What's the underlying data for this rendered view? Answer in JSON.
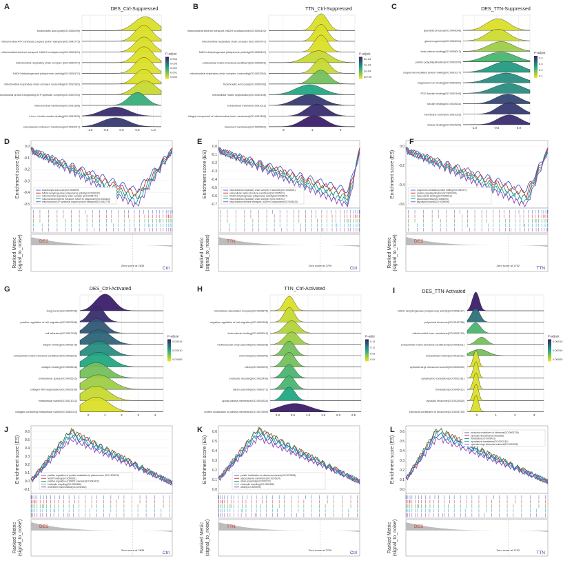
{
  "figure": {
    "panels": {
      "A": {
        "label": "A",
        "title": "DES_Ctrl-Suppressed",
        "terms": [
          "tricarboxylic acid cycle(GO:0006099)",
          "mitochondrial ATP synthesis coupled proton transport(GO:0042775)",
          "mitochondrial electron transport, NADH to ubiquinone(GO:0006120)",
          "mitochondrial respiratory chain complex I(GO:0005747)",
          "NADH dehydrogenase (ubiquinone) activity(GO:0008137)",
          "mitochondrial respiratory chain complex I assembly(GO:0032981)",
          "mitochondrial proton-transporting ATP synthase complex(GO:0005753)",
          "mitochondrial membrane(GO:0031966)",
          "4 iron, 4 sulfur cluster binding(GO:0051539)",
          "sarcoplasmic reticulum membrane(GO:0033017)"
        ],
        "x_ticks": [
          "-1.0",
          "-0.5",
          "0.0",
          "0.5",
          "1.0"
        ],
        "legend_title": "P-adjust",
        "legend_ticks": [
          "0.004",
          "0.003",
          "0.002",
          "0.001",
          "0.000"
        ]
      },
      "B": {
        "label": "B",
        "title": "TTN_Ctrl-Suppressed",
        "terms": [
          "mitochondrial electron transport, NADH to ubiquinone(GO:0006120)",
          "mitochondrial respiratory chain complex I(GO:0005747)",
          "NADH dehydrogenase (ubiquinone) activity(GO:0008137)",
          "extracellular matrix structural constituent(GO:0005201)",
          "mitochondrial respiratory chain complex I assembly(GO:0032981)",
          "tricarboxylic acid cycle(GO:0006099)",
          "extracellular matrix organization(GO:0030198)",
          "extracellular matrix(GO:0031012)",
          "integral component of mitochondrial inner membrane(GO:0031305)",
          "basement membrane(GO:0005604)"
        ],
        "x_ticks": [
          "-2",
          "-1",
          "0"
        ],
        "legend_title": "P-adjust",
        "legend_ticks": [
          "6e-04",
          "4e-04",
          "2e-04",
          "0e+00"
        ]
      },
      "C": {
        "label": "C",
        "title": "DES_TTN-Suppressed",
        "terms": [
          "glycolytic process(GO:0006096)",
          "gluconeogenesis(GO:0006094)",
          "beta-catenin binding(GO:0008013)",
          "protein polyubiquitination(GO:0000209)",
          "chaperone-mediated protein folding(GO:0061077)",
          "magnesium ion binding(GO:0000287)",
          "PDZ domain binding(GO:0030165)",
          "tubulin binding(GO:0015631)",
          "membrane fusion(GO:0061025)",
          "kinase binding(GO:0019900)"
        ],
        "x_ticks": [
          "-1.0",
          "-0.5",
          "0.0"
        ],
        "legend_title": "P-adjust",
        "legend_ticks": [
          "0.4",
          "0.3",
          "0.2",
          "0.1"
        ]
      },
      "D": {
        "label": "D",
        "ylabel": "Enrichment score (ES)",
        "rank_ylabel": "Ranked Metric (signal_to_noise)",
        "left_group": "DES",
        "right_group": "Ctrl",
        "zero_text": "Zero score at 2635",
        "y_ticks": [
          "0.0",
          "-0.1",
          "-0.2",
          "-0.3",
          "-0.4",
          "-0.5"
        ],
        "legend": [
          "tricarboxylic acid cycle(GO:0006099)",
          "NADH dehydrogenase (ubiquinone) activity(GO:0008137)",
          "mitochondrial respiratory chain complex I(GO:0005747)",
          "mitochondrial electron transport, NADH to ubiquinone(GO:0006120)",
          "mitochondrial ATP synthesis coupled proton transport(GO:0042775)"
        ]
      },
      "E": {
        "label": "E",
        "ylabel": "Enrichment score (ES)",
        "rank_ylabel": "Ranked Metric (signal_to_noise)",
        "left_group": "TTN",
        "right_group": "Ctrl",
        "zero_text": "Zero score at 2799",
        "y_ticks": [
          "0.0",
          "-0.1",
          "-0.2",
          "-0.3",
          "-0.4",
          "-0.5",
          "-0.6",
          "-0.7"
        ],
        "legend": [
          "mitochondrial respiratory chain complex I assembly(GO:0032981)",
          "extracellular matrix structural constituent(GO:0005201)",
          "NADH dehydrogenase (ubiquinone) activity(GO:0008137)",
          "mitochondrial respiratory chain complex I(GO:0005747)",
          "mitochondrial electron transport, NADH to ubiquinone(GO:0006120)"
        ]
      },
      "F": {
        "label": "F",
        "ylabel": "Enrichment score (ES)",
        "rank_ylabel": "Ranked Metric (signal_to_noise)",
        "left_group": "DES",
        "right_group": "TTN",
        "zero_text": "Zero score at 1792",
        "y_ticks": [
          "0.0",
          "-0.2",
          "-0.4",
          "-0.6"
        ],
        "legend": [
          "chaperone-mediated protein folding(GO:0061077)",
          "protein polyubiquitination(GO:0000209)",
          "beta-catenin binding(GO:0008013)",
          "gluconeogenesis(GO:0006094)",
          "glycolytic process(GO:0006096)"
        ]
      },
      "G": {
        "label": "G",
        "title": "DES_Ctrl-Activated",
        "terms": [
          "Golgi lumen(GO:0005796)",
          "positive regulation of cell migration(GO:0030335)",
          "cell adhesion(GO:0007155)",
          "integrin binding(GO:0005178)",
          "extracellular matrix structural constituent(GO:0005201)",
          "collagen binding(GO:0005518)",
          "extracellular space(GO:0005615)",
          "collagen fibril organization(GO:0030199)",
          "extracellular matrix(GO:0031012)",
          "collagen-containing extracellular matrix(GO:0062023)"
        ],
        "x_ticks": [
          "0",
          "1",
          "2",
          "3",
          "4"
        ],
        "legend_title": "P-adjust",
        "legend_ticks": [
          "0.00015",
          "0.00010",
          "0.00005"
        ]
      },
      "H": {
        "label": "H",
        "title": "TTN_Ctrl-Activated",
        "terms": [
          "microtubule associated complex(GO:0005875)",
          "negative regulation of cell migration(GO:0030336)",
          "beta-catenin binding(GO:0008013)",
          "multivesicular body assembly(GO:0036258)",
          "microvillus(GO:0005902)",
          "cilium(GO:0005929)",
          "endocytic recycling(GO:0032456)",
          "cilium assembly(GO:0060271)",
          "apical plasma membrane(GO:0016324)",
          "protein localization to plasma membrane(GO:0072659)"
        ],
        "x_ticks": [
          "0.0",
          "0.5",
          "1.0",
          "1.5",
          "2.0",
          "2.5"
        ],
        "legend_title": "P-adjust",
        "legend_ticks": [
          "0.16",
          "0.12",
          "0.08",
          "0.04"
        ]
      },
      "I": {
        "label": "I",
        "title": "DES_TTN-Activated",
        "terms": [
          "NADH dehydrogenase (ubiquinone) activity(GO:0008137)",
          "polysomal ribosome(GO:0042788)",
          "mitochondrial inner membrane(GO:0005743)",
          "extracellular matrix structural constituent(GO:0005201)",
          "extracellular matrix(GO:0031012)",
          "cytosolic large ribosomal subunit(GO:0022625)",
          "cytoplasmic translation(GO:0002181)",
          "translation(GO:0006412)",
          "cytosolic ribosome(GO:0022626)",
          "structural constituent of ribosome(GO:0003735)"
        ],
        "x_ticks": [
          "0",
          "1",
          "2",
          "3"
        ],
        "legend_title": "P-adjust",
        "legend_ticks": [
          "0.00015",
          "0.00010",
          "0.00005"
        ]
      },
      "J": {
        "label": "J",
        "ylabel": "Enrichment score (ES)",
        "rank_ylabel": "Ranked Metric (signal_to_noise)",
        "left_group": "DES",
        "right_group": "Ctrl",
        "zero_text": "Zero score at 2635",
        "y_ticks": [
          "0.6",
          "0.5",
          "0.4",
          "0.3",
          "0.2",
          "0.1",
          "0.0",
          "-0.1"
        ],
        "legend": [
          "positive regulation of protein localization to plasma mem (GO:1903078)",
          "NADP binding(GO:0050661)",
          "positive regulation of MAPK cascade(GO:0043410)",
          "endocytic recycling(GO:0032456)",
          "cholesterol homeostasis(GO:0042632)"
        ]
      },
      "K": {
        "label": "K",
        "ylabel": "Enrichment score (ES)",
        "rank_ylabel": "Ranked Metric (signal_to_noise)",
        "left_group": "TTN",
        "right_group": "Ctrl",
        "zero_text": "Zero score at 2799",
        "y_ticks": [
          "0.6",
          "0.5",
          "0.4",
          "0.3",
          "0.2",
          "0.1",
          "0.0"
        ],
        "legend": [
          "protein localization to plasma membrane(GO:0072659)",
          "apical plasma membrane(GO:0016324)",
          "cilium assembly(GO:0060271)",
          "endocytic recycling(GO:0032456)",
          "cilium(GO:0005929)"
        ]
      },
      "L": {
        "label": "L",
        "ylabel": "Enrichment score (ES)",
        "rank_ylabel": "Ranked Metric (signal_to_noise)",
        "left_group": "DES",
        "right_group": "TTN",
        "zero_text": "Zero score at 1792",
        "y_ticks": [
          "0.6",
          "0.5",
          "0.4",
          "0.3",
          "0.2",
          "0.1",
          "0.0"
        ],
        "legend": [
          "structural constituent of ribosome(GO:0003735)",
          "cytosolic ribosome(GO:0022626)",
          "translation(GO:0006412)",
          "cytoplasmic translation(GO:0002181)",
          "cytosolic large ribosomal subunit(GO:0022625)"
        ]
      }
    },
    "colors": {
      "ridge_low": "#f2e622",
      "ridge_mid": "#22a884",
      "ridge_high": "#3b1f6b",
      "gsea": [
        "#3a5fcd",
        "#d62728",
        "#2e8b57",
        "#17a2b8",
        "#8e44ad"
      ],
      "grid": "#e6e6e6",
      "panel_bg": "#ebebeb",
      "rank": "#bdbdbd"
    }
  }
}
